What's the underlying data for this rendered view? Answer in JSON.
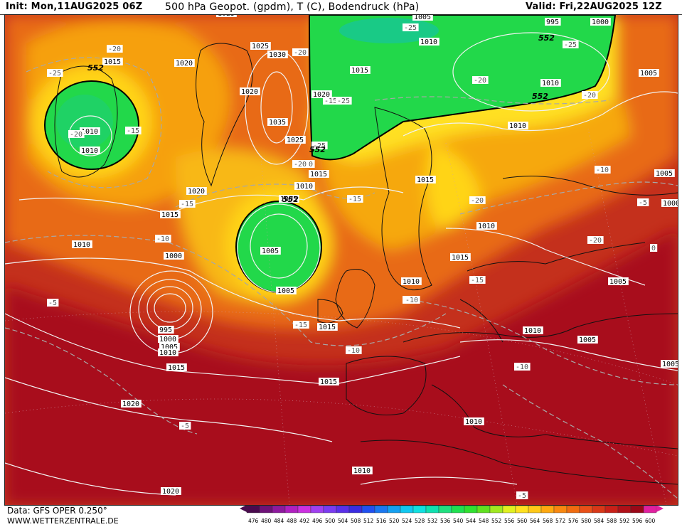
{
  "header": {
    "init": "Init: Mon,11AUG2025 06Z",
    "title": "500 hPa Geopot. (gpdm), T (C), Bodendruck (hPa)",
    "valid": "Valid: Fri,22AUG2025 12Z"
  },
  "footer": {
    "data_source": "Data: GFS OPER 0.250°",
    "site": "WWW.WETTERZENTRALE.DE"
  },
  "colorbar": {
    "values": [
      "476",
      "480",
      "484",
      "488",
      "492",
      "496",
      "500",
      "504",
      "508",
      "512",
      "516",
      "520",
      "524",
      "528",
      "532",
      "536",
      "540",
      "544",
      "548",
      "552",
      "556",
      "560",
      "564",
      "568",
      "572",
      "576",
      "580",
      "584",
      "588",
      "592",
      "596",
      "600"
    ],
    "colors": [
      "#4a0a4e",
      "#6e1278",
      "#8e1a9e",
      "#b020c0",
      "#cc30e0",
      "#a040f0",
      "#7a3cf0",
      "#5a30e8",
      "#3a2ce0",
      "#2050f0",
      "#1a78f0",
      "#14a0f0",
      "#10c8f0",
      "#10e0e0",
      "#10e0b0",
      "#20e080",
      "#20e050",
      "#30e030",
      "#60e020",
      "#a0e820",
      "#e0f020",
      "#ffe020",
      "#ffc818",
      "#ffa810",
      "#f88810",
      "#f06c10",
      "#e85018",
      "#d83818",
      "#c82018",
      "#b01018",
      "#9a0818",
      "#e020a0"
    ]
  },
  "labels": {
    "pressure": [
      "1025",
      "1005",
      "1000",
      "995",
      "1010",
      "1025",
      "1030",
      "1015",
      "1020",
      "1020",
      "1015",
      "1035",
      "1025",
      "1020",
      "1010",
      "1010",
      "1010",
      "1015",
      "1010",
      "1020",
      "1015",
      "1015",
      "1005",
      "1010",
      "1015",
      "1010",
      "1000",
      "1005",
      "1010",
      "1015",
      "1005",
      "995",
      "1000",
      "1005",
      "1010",
      "1015",
      "1015",
      "1010",
      "1010",
      "1005",
      "1005",
      "1005",
      "1020",
      "1010",
      "1020",
      "1010",
      "1005",
      "1000",
      "1005"
    ],
    "temperature": [
      "-20",
      "-25",
      "-25",
      "-20",
      "-15",
      "-20",
      "-20",
      "-15",
      "-20",
      "-25",
      "-25",
      "-20",
      "-25",
      "-20",
      "-20",
      "-10",
      "-15",
      "-15",
      "-10",
      "-20",
      "-10",
      "-15",
      "-5",
      "-10",
      "-10",
      "-5",
      "0",
      "-15",
      "-10",
      "-10",
      "-5",
      "-5",
      "-20"
    ],
    "geopotential": [
      "552",
      "552",
      "552",
      "552",
      "552"
    ]
  }
}
